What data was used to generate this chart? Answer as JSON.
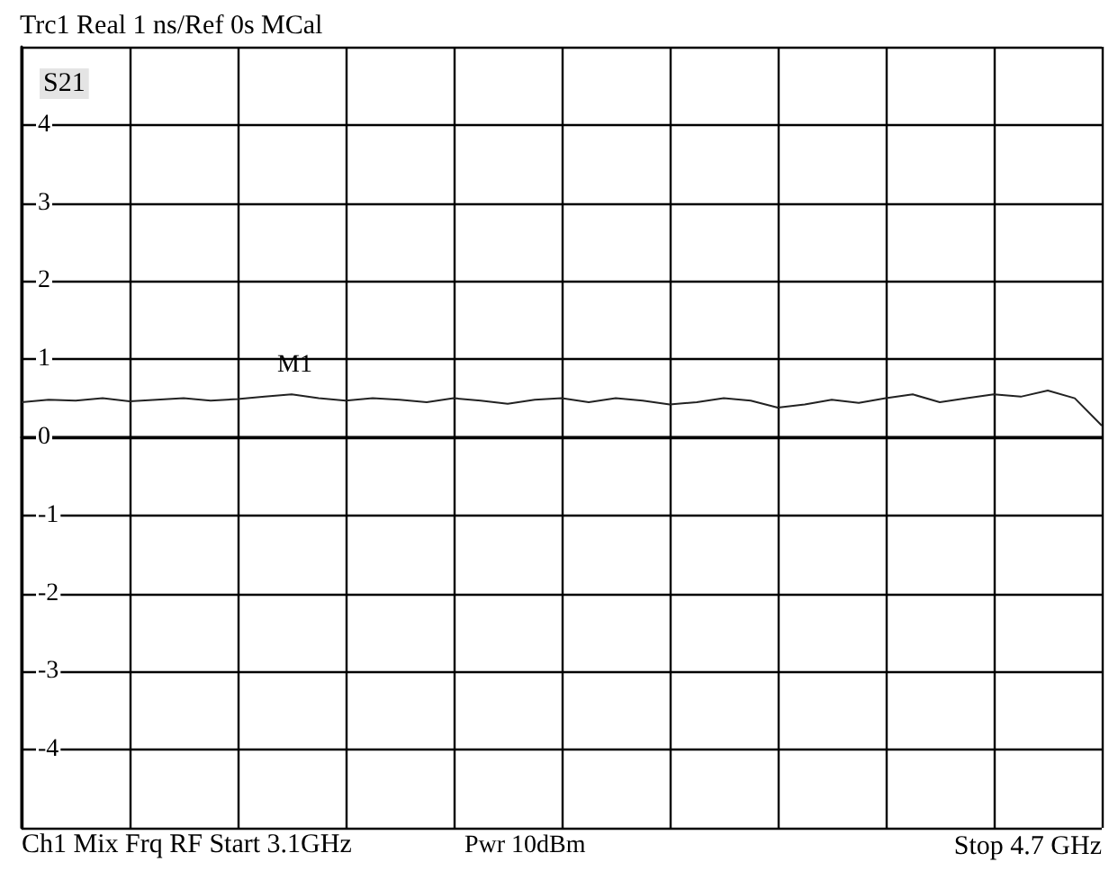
{
  "chart_data": {
    "type": "line",
    "title": "Trc1 Real 1 ns/Ref 0s MCal",
    "annotations": [
      "S21",
      "M1",
      "Ch1 Mix Frq RF Start 3.1GHz",
      "Pwr 10dBm",
      "Stop 4.7 GHz"
    ],
    "categories": [
      null,
      null,
      null,
      null,
      null,
      null,
      null,
      null,
      null,
      null,
      null,
      null,
      null,
      null,
      null,
      null,
      null,
      null,
      null,
      null,
      null,
      null,
      null,
      null,
      null,
      null,
      null,
      null,
      null,
      null,
      null,
      null,
      null,
      null,
      null,
      null,
      null,
      null,
      null,
      null,
      null
    ],
    "series": [
      {
        "color": "#222222",
        "values": [
          0.45,
          0.48,
          0.47,
          0.5,
          0.46,
          0.48,
          0.5,
          0.47,
          0.49,
          0.52,
          0.55,
          0.5,
          0.47,
          0.5,
          0.48,
          0.45,
          0.5,
          0.47,
          0.43,
          0.48,
          0.5,
          0.45,
          0.5,
          0.47,
          0.42,
          0.45,
          0.5,
          0.47,
          0.38,
          0.42,
          0.48,
          0.44,
          0.5,
          0.55,
          0.45,
          0.5,
          0.55,
          0.52,
          0.6,
          0.5,
          0.15
        ]
      }
    ],
    "ylim": [
      -5,
      5
    ],
    "yticks": [
      {
        "value": -5,
        "label": null
      },
      -4,
      -3,
      -2,
      -1,
      0,
      1,
      2,
      3,
      4,
      {
        "value": 5,
        "label": null
      }
    ],
    "tick_labels": "y",
    "grid": true,
    "marker": "none",
    "line_style": "solid"
  }
}
